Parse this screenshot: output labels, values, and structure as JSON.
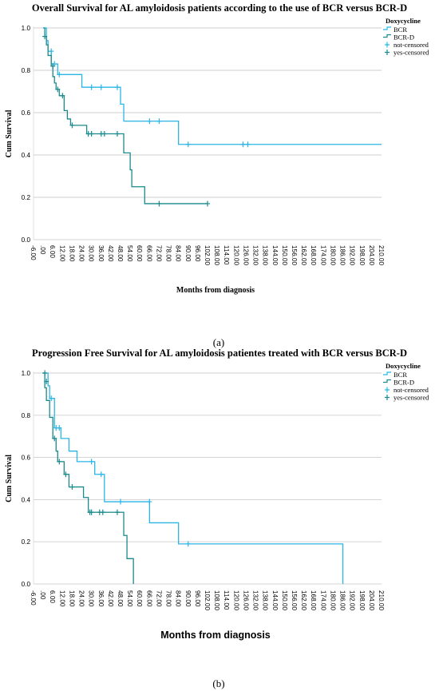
{
  "chart_data": [
    {
      "type": "line",
      "title": "Overall Survival  for AL amyloidosis patients according to the use of BCR versus BCR-D",
      "xlabel": "Months from diagnosis",
      "ylabel": "Cum Survival",
      "xlim": [
        -6,
        210
      ],
      "ylim": [
        0,
        1.0
      ],
      "x_ticks": [
        "-6.00",
        ".00",
        "6.00",
        "12.00",
        "18.00",
        "24.00",
        "30.00",
        "36.00",
        "42.00",
        "48.00",
        "54.00",
        "60.00",
        "66.00",
        "72.00",
        "78.00",
        "84.00",
        "90.00",
        "96.00",
        "102.00",
        "108.00",
        "114.00",
        "120.00",
        "126.00",
        "132.00",
        "138.00",
        "144.00",
        "150.00",
        "156.00",
        "162.00",
        "168.00",
        "174.00",
        "180.00",
        "186.00",
        "192.00",
        "198.00",
        "204.00",
        "210.00"
      ],
      "y_ticks": [
        "0.0",
        "0.2",
        "0.4",
        "0.6",
        "0.8",
        "1.0"
      ],
      "grid": "horizontal",
      "legend": {
        "title": "Doxycycline",
        "position": "top-right",
        "entries": [
          {
            "label": "BCR",
            "kind": "line",
            "color": "#29b6e6"
          },
          {
            "label": "BCR-D",
            "kind": "line",
            "color": "#1a8a8c"
          },
          {
            "label": "not-censored",
            "kind": "cross",
            "color": "#29b6e6"
          },
          {
            "label": "yes-censored",
            "kind": "cross",
            "color": "#1a8a8c"
          }
        ]
      },
      "series": [
        {
          "name": "BCR",
          "color": "#29b6e6",
          "steps": [
            [
              0,
              1.0
            ],
            [
              2,
              0.94
            ],
            [
              3,
              0.89
            ],
            [
              5,
              0.83
            ],
            [
              9,
              0.78
            ],
            [
              24,
              0.72
            ],
            [
              48,
              0.64
            ],
            [
              50,
              0.56
            ],
            [
              84,
              0.45
            ],
            [
              210,
              0.45
            ]
          ],
          "censored": [
            [
              5,
              0.89
            ],
            [
              7,
              0.83
            ],
            [
              10,
              0.78
            ],
            [
              30,
              0.72
            ],
            [
              36,
              0.72
            ],
            [
              46,
              0.72
            ],
            [
              66,
              0.56
            ],
            [
              72,
              0.56
            ],
            [
              90,
              0.45
            ],
            [
              124,
              0.45
            ],
            [
              127,
              0.45
            ]
          ]
        },
        {
          "name": "BCR-D",
          "color": "#1a8a8c",
          "steps": [
            [
              0,
              1.0
            ],
            [
              1,
              0.96
            ],
            [
              2,
              0.92
            ],
            [
              3,
              0.87
            ],
            [
              5,
              0.82
            ],
            [
              6,
              0.77
            ],
            [
              7,
              0.74
            ],
            [
              8,
              0.71
            ],
            [
              10,
              0.68
            ],
            [
              13,
              0.61
            ],
            [
              15,
              0.57
            ],
            [
              17,
              0.54
            ],
            [
              27,
              0.5
            ],
            [
              50,
              0.41
            ],
            [
              54,
              0.33
            ],
            [
              55,
              0.25
            ],
            [
              63,
              0.17
            ],
            [
              102,
              0.17
            ]
          ],
          "censored": [
            [
              1,
              0.96
            ],
            [
              6,
              0.82
            ],
            [
              9,
              0.71
            ],
            [
              12,
              0.68
            ],
            [
              18,
              0.54
            ],
            [
              28,
              0.5
            ],
            [
              30,
              0.5
            ],
            [
              36,
              0.5
            ],
            [
              38,
              0.5
            ],
            [
              46,
              0.5
            ],
            [
              72,
              0.17
            ],
            [
              102,
              0.17
            ]
          ]
        }
      ]
    },
    {
      "type": "line",
      "title": "Progression Free Survival for AL amyloidosis patientes treated with BCR versus BCR-D",
      "xlabel": "Months from diagnosis",
      "ylabel": "Cum Survival",
      "xlim": [
        -6,
        210
      ],
      "ylim": [
        0,
        1.0
      ],
      "x_ticks": [
        "-6.00",
        ".00",
        "6.00",
        "12.00",
        "18.00",
        "24.00",
        "30.00",
        "36.00",
        "42.00",
        "48.00",
        "54.00",
        "60.00",
        "66.00",
        "72.00",
        "78.00",
        "84.00",
        "90.00",
        "96.00",
        "102.00",
        "108.00",
        "114.00",
        "120.00",
        "126.00",
        "132.00",
        "138.00",
        "144.00",
        "150.00",
        "156.00",
        "162.00",
        "168.00",
        "174.00",
        "180.00",
        "186.00",
        "192.00",
        "198.00",
        "204.00",
        "210.00"
      ],
      "y_ticks": [
        "0.0",
        "0.2",
        "0.4",
        "0.6",
        "0.8",
        "1.0"
      ],
      "grid": "horizontal",
      "legend": {
        "title": "Doxycycline",
        "position": "top-right",
        "entries": [
          {
            "label": "BCR",
            "kind": "line",
            "color": "#29b6e6"
          },
          {
            "label": "BCR-D",
            "kind": "line",
            "color": "#1a8a8c"
          },
          {
            "label": "not-censored",
            "kind": "cross",
            "color": "#29b6e6"
          },
          {
            "label": "yes-censored",
            "kind": "cross",
            "color": "#1a8a8c"
          }
        ]
      },
      "series": [
        {
          "name": "BCR",
          "color": "#29b6e6",
          "steps": [
            [
              0,
              1.0
            ],
            [
              3,
              0.94
            ],
            [
              4,
              0.88
            ],
            [
              7,
              0.74
            ],
            [
              11,
              0.69
            ],
            [
              16,
              0.63
            ],
            [
              21,
              0.58
            ],
            [
              32,
              0.52
            ],
            [
              38,
              0.39
            ],
            [
              66,
              0.29
            ],
            [
              84,
              0.19
            ],
            [
              186,
              0.19
            ],
            [
              186,
              0.0
            ]
          ],
          "censored": [
            [
              5,
              0.88
            ],
            [
              8,
              0.74
            ],
            [
              10,
              0.74
            ],
            [
              30,
              0.58
            ],
            [
              36,
              0.52
            ],
            [
              48,
              0.39
            ],
            [
              66,
              0.39
            ],
            [
              90,
              0.19
            ]
          ]
        },
        {
          "name": "BCR-D",
          "color": "#1a8a8c",
          "steps": [
            [
              0,
              1.0
            ],
            [
              1,
              0.93
            ],
            [
              2,
              0.87
            ],
            [
              4,
              0.79
            ],
            [
              6,
              0.69
            ],
            [
              8,
              0.63
            ],
            [
              9,
              0.58
            ],
            [
              13,
              0.52
            ],
            [
              16,
              0.46
            ],
            [
              25,
              0.41
            ],
            [
              28,
              0.34
            ],
            [
              50,
              0.23
            ],
            [
              52,
              0.12
            ],
            [
              56,
              0.0
            ]
          ],
          "censored": [
            [
              1,
              1.0
            ],
            [
              2,
              0.96
            ],
            [
              7,
              0.69
            ],
            [
              10,
              0.58
            ],
            [
              14,
              0.52
            ],
            [
              18,
              0.46
            ],
            [
              29,
              0.34
            ],
            [
              30,
              0.34
            ],
            [
              35,
              0.34
            ],
            [
              37,
              0.34
            ],
            [
              46,
              0.34
            ]
          ]
        }
      ]
    }
  ],
  "panel_labels": [
    "(a)",
    "(b)"
  ]
}
